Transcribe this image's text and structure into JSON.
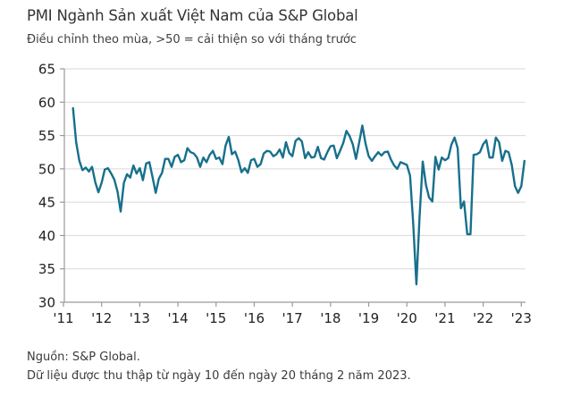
{
  "header": {
    "title": "PMI Ngành Sản xuất Việt Nam của S&P Global",
    "subtitle": "Điều chỉnh theo mùa, >50 = cải thiện so với tháng trước"
  },
  "footer": {
    "source": "Nguồn: S&P Global.",
    "note": "Dữ liệu được thu thập từ ngày 10 đến ngày 20 tháng 2 năm 2023."
  },
  "chart_data": {
    "type": "line",
    "title": "PMI Ngành Sản xuất Việt Nam của S&P Global",
    "frequency": "monthly",
    "start_month": "2011-04",
    "end_month": "2023-02",
    "ylim": [
      30,
      65
    ],
    "yticks": [
      30,
      35,
      40,
      45,
      50,
      55,
      60,
      65
    ],
    "x_tick_labels": [
      "'11",
      "'12",
      "'13",
      "'14",
      "'15",
      "'16",
      "'17",
      "'18",
      "'19",
      "'20",
      "'21",
      "'22",
      "'23"
    ],
    "legend": "none",
    "grid": "horizontal",
    "line_color": "#17708c",
    "grid_color": "#d9d9d9",
    "axis_color": "#999999",
    "values": [
      59.1,
      54.0,
      51.2,
      49.8,
      50.2,
      49.6,
      50.3,
      48.0,
      46.5,
      47.9,
      49.9,
      50.1,
      49.3,
      48.4,
      46.6,
      43.6,
      47.9,
      49.2,
      48.7,
      50.5,
      49.3,
      50.1,
      48.3,
      50.8,
      51.0,
      48.8,
      46.4,
      48.5,
      49.4,
      51.5,
      51.5,
      50.3,
      51.8,
      52.1,
      51.0,
      51.3,
      53.1,
      52.5,
      52.3,
      51.7,
      50.3,
      51.7,
      51.0,
      52.1,
      52.7,
      51.5,
      51.7,
      50.7,
      53.5,
      54.8,
      52.2,
      52.6,
      51.3,
      49.5,
      50.1,
      49.4,
      51.3,
      51.5,
      50.3,
      50.7,
      52.3,
      52.7,
      52.6,
      51.9,
      52.2,
      52.9,
      51.7,
      54.0,
      52.4,
      51.9,
      54.2,
      54.6,
      54.1,
      51.6,
      52.5,
      51.7,
      51.8,
      53.3,
      51.6,
      51.4,
      52.5,
      53.4,
      53.5,
      51.6,
      52.7,
      53.9,
      55.7,
      54.9,
      53.7,
      51.5,
      53.9,
      56.5,
      53.8,
      51.9,
      51.2,
      51.9,
      52.5,
      52.0,
      52.5,
      52.6,
      51.4,
      50.5,
      50.0,
      51.0,
      50.8,
      50.6,
      49.0,
      41.9,
      32.7,
      42.7,
      51.1,
      47.6,
      45.7,
      45.1,
      51.8,
      49.9,
      51.7,
      51.3,
      51.6,
      53.6,
      54.7,
      53.1,
      44.1,
      45.1,
      40.2,
      40.2,
      52.1,
      52.2,
      52.5,
      53.7,
      54.3,
      51.7,
      51.7,
      54.7,
      54.0,
      51.2,
      52.7,
      52.5,
      50.6,
      47.4,
      46.4,
      47.4,
      51.2
    ]
  }
}
